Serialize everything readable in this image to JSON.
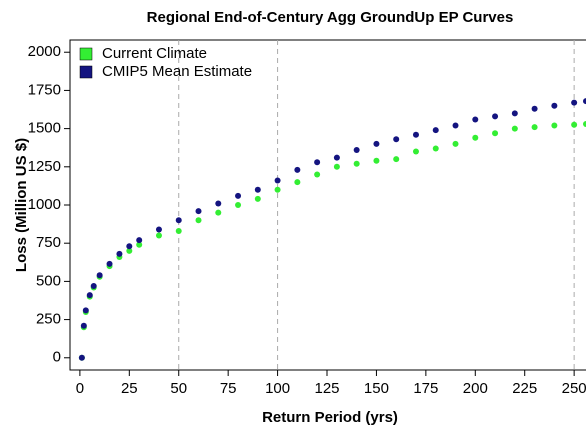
{
  "chart_data": {
    "type": "scatter",
    "title": "Regional End-of-Century Agg GroundUp EP Curves",
    "x_label": "Return Period (yrs)",
    "y_label": "Loss (Million US $)",
    "x": [
      1,
      2,
      3,
      5,
      7,
      10,
      15,
      20,
      25,
      30,
      40,
      50,
      60,
      70,
      80,
      90,
      100,
      110,
      120,
      130,
      140,
      150,
      160,
      170,
      180,
      190,
      200,
      210,
      220,
      230,
      240,
      250,
      256
    ],
    "series": [
      {
        "name": "Current Climate",
        "color": "#33ee33",
        "values": [
          0,
          200,
          300,
          400,
          460,
          530,
          600,
          660,
          700,
          740,
          800,
          830,
          900,
          950,
          1000,
          1040,
          1100,
          1150,
          1200,
          1250,
          1270,
          1290,
          1300,
          1350,
          1370,
          1400,
          1440,
          1470,
          1500,
          1510,
          1520,
          1525,
          1530
        ]
      },
      {
        "name": "CMIP5 Mean Estimate",
        "color": "#141480",
        "values": [
          0,
          210,
          310,
          410,
          470,
          540,
          615,
          680,
          730,
          770,
          840,
          900,
          960,
          1010,
          1060,
          1100,
          1160,
          1230,
          1280,
          1310,
          1360,
          1400,
          1430,
          1460,
          1490,
          1520,
          1560,
          1580,
          1600,
          1630,
          1650,
          1670,
          1680
        ]
      }
    ],
    "xlim": [
      -5,
      256
    ],
    "xticks": [
      0,
      25,
      50,
      75,
      100,
      125,
      150,
      175,
      200,
      225,
      250
    ],
    "ylim": [
      -80,
      2080
    ],
    "yticks": [
      0,
      250,
      500,
      750,
      1000,
      1250,
      1500,
      1750,
      2000
    ],
    "vlines": [
      50,
      100,
      250
    ],
    "legend": "top-left"
  }
}
